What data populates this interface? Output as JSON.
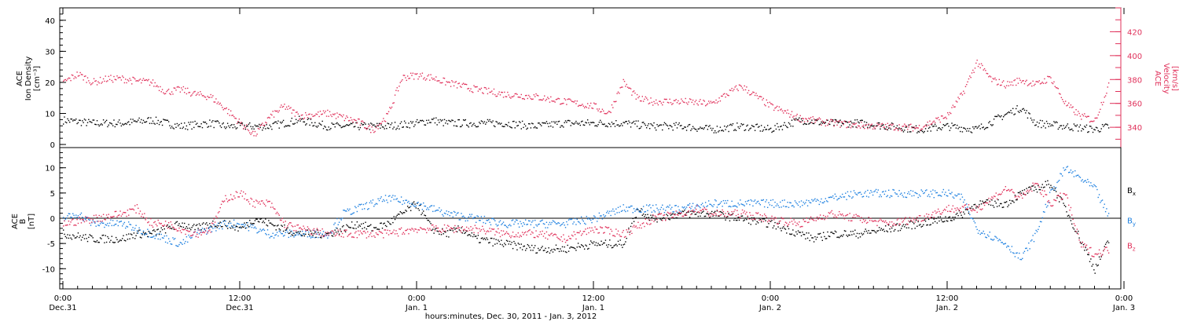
{
  "chart_data": [
    {
      "type": "scatter",
      "panel": "top",
      "ylabel_left": [
        "ACE",
        "Ion Density",
        "[cm⁻³]"
      ],
      "ylabel_right": [
        "ACE",
        "Velocity",
        "[km/s]"
      ],
      "ylim_left": [
        -1,
        44
      ],
      "yticks_left": [
        "0",
        "10",
        "20",
        "30",
        "40"
      ],
      "ylim_right": [
        323,
        440
      ],
      "yticks_right": [
        "340",
        "360",
        "380",
        "400",
        "420"
      ],
      "series": [
        {
          "color": "#000000",
          "axis": "left",
          "points": [
            [
              0,
              8
            ],
            [
              2,
              7
            ],
            [
              4,
              7
            ],
            [
              6,
              8
            ],
            [
              8,
              6
            ],
            [
              10,
              7
            ],
            [
              11,
              6
            ],
            [
              12,
              6
            ],
            [
              13,
              6
            ],
            [
              14,
              6
            ],
            [
              16,
              8
            ],
            [
              18,
              6
            ],
            [
              20,
              6
            ],
            [
              22,
              6
            ],
            [
              24,
              7
            ],
            [
              25,
              8
            ],
            [
              26,
              7
            ],
            [
              28,
              7
            ],
            [
              30,
              7
            ],
            [
              32,
              6
            ],
            [
              34,
              7
            ],
            [
              36,
              7
            ],
            [
              38,
              7
            ],
            [
              40,
              6
            ],
            [
              42,
              6
            ],
            [
              44,
              5
            ],
            [
              46,
              6
            ],
            [
              48,
              5
            ],
            [
              50,
              8
            ],
            [
              52,
              7
            ],
            [
              54,
              7
            ],
            [
              56,
              6
            ],
            [
              58,
              5
            ],
            [
              60,
              6
            ],
            [
              62,
              5
            ],
            [
              64,
              10
            ],
            [
              65,
              12
            ],
            [
              66,
              7
            ],
            [
              68,
              6
            ],
            [
              70,
              5
            ],
            [
              71,
              6
            ]
          ]
        },
        {
          "color": "#e0305a",
          "axis": "right",
          "points": [
            [
              0,
              378
            ],
            [
              1,
              385
            ],
            [
              2,
              378
            ],
            [
              3,
              381
            ],
            [
              4,
              381
            ],
            [
              5,
              379
            ],
            [
              6,
              378
            ],
            [
              7,
              370
            ],
            [
              8,
              372
            ],
            [
              9,
              368
            ],
            [
              10,
              366
            ],
            [
              11,
              356
            ],
            [
              12,
              344
            ],
            [
              13,
              334
            ],
            [
              14,
              349
            ],
            [
              15,
              358
            ],
            [
              16,
              350
            ],
            [
              18,
              352
            ],
            [
              20,
              345
            ],
            [
              21,
              338
            ],
            [
              22,
              350
            ],
            [
              23,
              382
            ],
            [
              24,
              384
            ],
            [
              25,
              382
            ],
            [
              26,
              378
            ],
            [
              28,
              372
            ],
            [
              30,
              368
            ],
            [
              32,
              366
            ],
            [
              34,
              362
            ],
            [
              36,
              358
            ],
            [
              37,
              352
            ],
            [
              38,
              378
            ],
            [
              39,
              364
            ],
            [
              40,
              362
            ],
            [
              42,
              362
            ],
            [
              44,
              360
            ],
            [
              45,
              368
            ],
            [
              46,
              375
            ],
            [
              48,
              358
            ],
            [
              50,
              348
            ],
            [
              52,
              344
            ],
            [
              54,
              342
            ],
            [
              56,
              341
            ],
            [
              58,
              340
            ],
            [
              60,
              350
            ],
            [
              61,
              368
            ],
            [
              62,
              395
            ],
            [
              63,
              380
            ],
            [
              64,
              376
            ],
            [
              65,
              380
            ],
            [
              66,
              376
            ],
            [
              67,
              382
            ],
            [
              68,
              360
            ],
            [
              69,
              350
            ],
            [
              70,
              346
            ],
            [
              71,
              378
            ]
          ]
        }
      ]
    },
    {
      "type": "scatter",
      "panel": "bottom",
      "ylabel": [
        "ACE",
        "B",
        "[nT]"
      ],
      "ylim": [
        -14,
        14
      ],
      "yticks": [
        "-10",
        "-5",
        "0",
        "5",
        "10"
      ],
      "legend_position": "right",
      "series": [
        {
          "name": "Bx",
          "color": "#000000",
          "points": [
            [
              0,
              -3
            ],
            [
              2,
              -4
            ],
            [
              4,
              -4
            ],
            [
              5,
              -3
            ],
            [
              6,
              -3
            ],
            [
              7,
              -2
            ],
            [
              8,
              -1
            ],
            [
              9,
              -2
            ],
            [
              10,
              -1
            ],
            [
              11,
              -1
            ],
            [
              12,
              -2
            ],
            [
              13,
              0
            ],
            [
              14,
              -1
            ],
            [
              16,
              -3
            ],
            [
              18,
              -3
            ],
            [
              20,
              -1
            ],
            [
              21,
              -2
            ],
            [
              22,
              -1
            ],
            [
              24,
              3
            ],
            [
              25,
              -2
            ],
            [
              26,
              -3
            ],
            [
              27,
              -2
            ],
            [
              28,
              -4
            ],
            [
              30,
              -5
            ],
            [
              32,
              -6
            ],
            [
              34,
              -6
            ],
            [
              36,
              -5
            ],
            [
              38,
              -5
            ],
            [
              39,
              2
            ],
            [
              40,
              0
            ],
            [
              42,
              1
            ],
            [
              44,
              1
            ],
            [
              46,
              0
            ],
            [
              48,
              -1
            ],
            [
              50,
              -3
            ],
            [
              51,
              -4
            ],
            [
              52,
              -3
            ],
            [
              54,
              -3
            ],
            [
              56,
              -2
            ],
            [
              58,
              -1
            ],
            [
              60,
              0
            ],
            [
              61,
              1
            ],
            [
              62,
              3
            ],
            [
              64,
              3
            ],
            [
              65,
              5
            ],
            [
              66,
              6
            ],
            [
              67,
              7
            ],
            [
              68,
              2
            ],
            [
              69,
              -4
            ],
            [
              70,
              -10
            ],
            [
              71,
              -4
            ]
          ]
        },
        {
          "name": "By",
          "color": "#1e80e0",
          "points": [
            [
              0,
              0
            ],
            [
              1,
              1
            ],
            [
              2,
              -1
            ],
            [
              4,
              -1
            ],
            [
              6,
              -3
            ],
            [
              7,
              -4
            ],
            [
              8,
              -5
            ],
            [
              9,
              -3
            ],
            [
              10,
              -2
            ],
            [
              11,
              -1
            ],
            [
              12,
              -1
            ],
            [
              14,
              -3
            ],
            [
              16,
              -3
            ],
            [
              18,
              -3
            ],
            [
              19,
              1
            ],
            [
              20,
              2
            ],
            [
              22,
              4
            ],
            [
              24,
              3
            ],
            [
              25,
              2
            ],
            [
              26,
              1
            ],
            [
              28,
              0
            ],
            [
              30,
              -1
            ],
            [
              32,
              -1
            ],
            [
              34,
              -1
            ],
            [
              36,
              0
            ],
            [
              38,
              2
            ],
            [
              40,
              2
            ],
            [
              42,
              2
            ],
            [
              44,
              3
            ],
            [
              46,
              3
            ],
            [
              48,
              3
            ],
            [
              50,
              3
            ],
            [
              52,
              4
            ],
            [
              54,
              5
            ],
            [
              56,
              5
            ],
            [
              58,
              5
            ],
            [
              60,
              5
            ],
            [
              61,
              4
            ],
            [
              62,
              -2
            ],
            [
              64,
              -5
            ],
            [
              65,
              -8
            ],
            [
              66,
              -3
            ],
            [
              67,
              5
            ],
            [
              68,
              10
            ],
            [
              69,
              8
            ],
            [
              70,
              6
            ],
            [
              71,
              0
            ]
          ]
        },
        {
          "name": "Bz",
          "color": "#e0305a",
          "points": [
            [
              0,
              -1
            ],
            [
              2,
              0
            ],
            [
              4,
              1
            ],
            [
              5,
              2
            ],
            [
              6,
              -1
            ],
            [
              7,
              -1
            ],
            [
              8,
              -2
            ],
            [
              9,
              -3
            ],
            [
              10,
              -2
            ],
            [
              11,
              4
            ],
            [
              12,
              5
            ],
            [
              13,
              3
            ],
            [
              14,
              3
            ],
            [
              15,
              -1
            ],
            [
              16,
              -2
            ],
            [
              18,
              -3
            ],
            [
              20,
              -3
            ],
            [
              22,
              -3
            ],
            [
              24,
              -2
            ],
            [
              26,
              -2
            ],
            [
              28,
              -2
            ],
            [
              30,
              -3
            ],
            [
              32,
              -3
            ],
            [
              34,
              -4
            ],
            [
              36,
              -2
            ],
            [
              38,
              -3
            ],
            [
              40,
              0
            ],
            [
              42,
              1
            ],
            [
              43,
              2
            ],
            [
              44,
              1
            ],
            [
              46,
              1
            ],
            [
              48,
              0
            ],
            [
              50,
              -1
            ],
            [
              52,
              1
            ],
            [
              54,
              0
            ],
            [
              56,
              -1
            ],
            [
              58,
              0
            ],
            [
              60,
              2
            ],
            [
              62,
              2
            ],
            [
              64,
              6
            ],
            [
              65,
              4
            ],
            [
              66,
              7
            ],
            [
              67,
              3
            ],
            [
              68,
              5
            ],
            [
              69,
              -5
            ],
            [
              70,
              -7
            ],
            [
              71,
              -6
            ]
          ]
        }
      ]
    }
  ],
  "x_axis": {
    "xlim": [
      0,
      72
    ],
    "ticks": [
      {
        "time": "0:00",
        "date": "Dec.31"
      },
      {
        "time": "12:00",
        "date": "Dec.31"
      },
      {
        "time": "0:00",
        "date": "Jan. 1"
      },
      {
        "time": "12:00",
        "date": "Jan. 1"
      },
      {
        "time": "0:00",
        "date": "Jan. 2"
      },
      {
        "time": "12:00",
        "date": "Jan. 2"
      },
      {
        "time": "0:00",
        "date": "Jan. 3"
      }
    ],
    "label": "hours:minutes, Dec. 30, 2011 - Jan.  3, 2012"
  }
}
